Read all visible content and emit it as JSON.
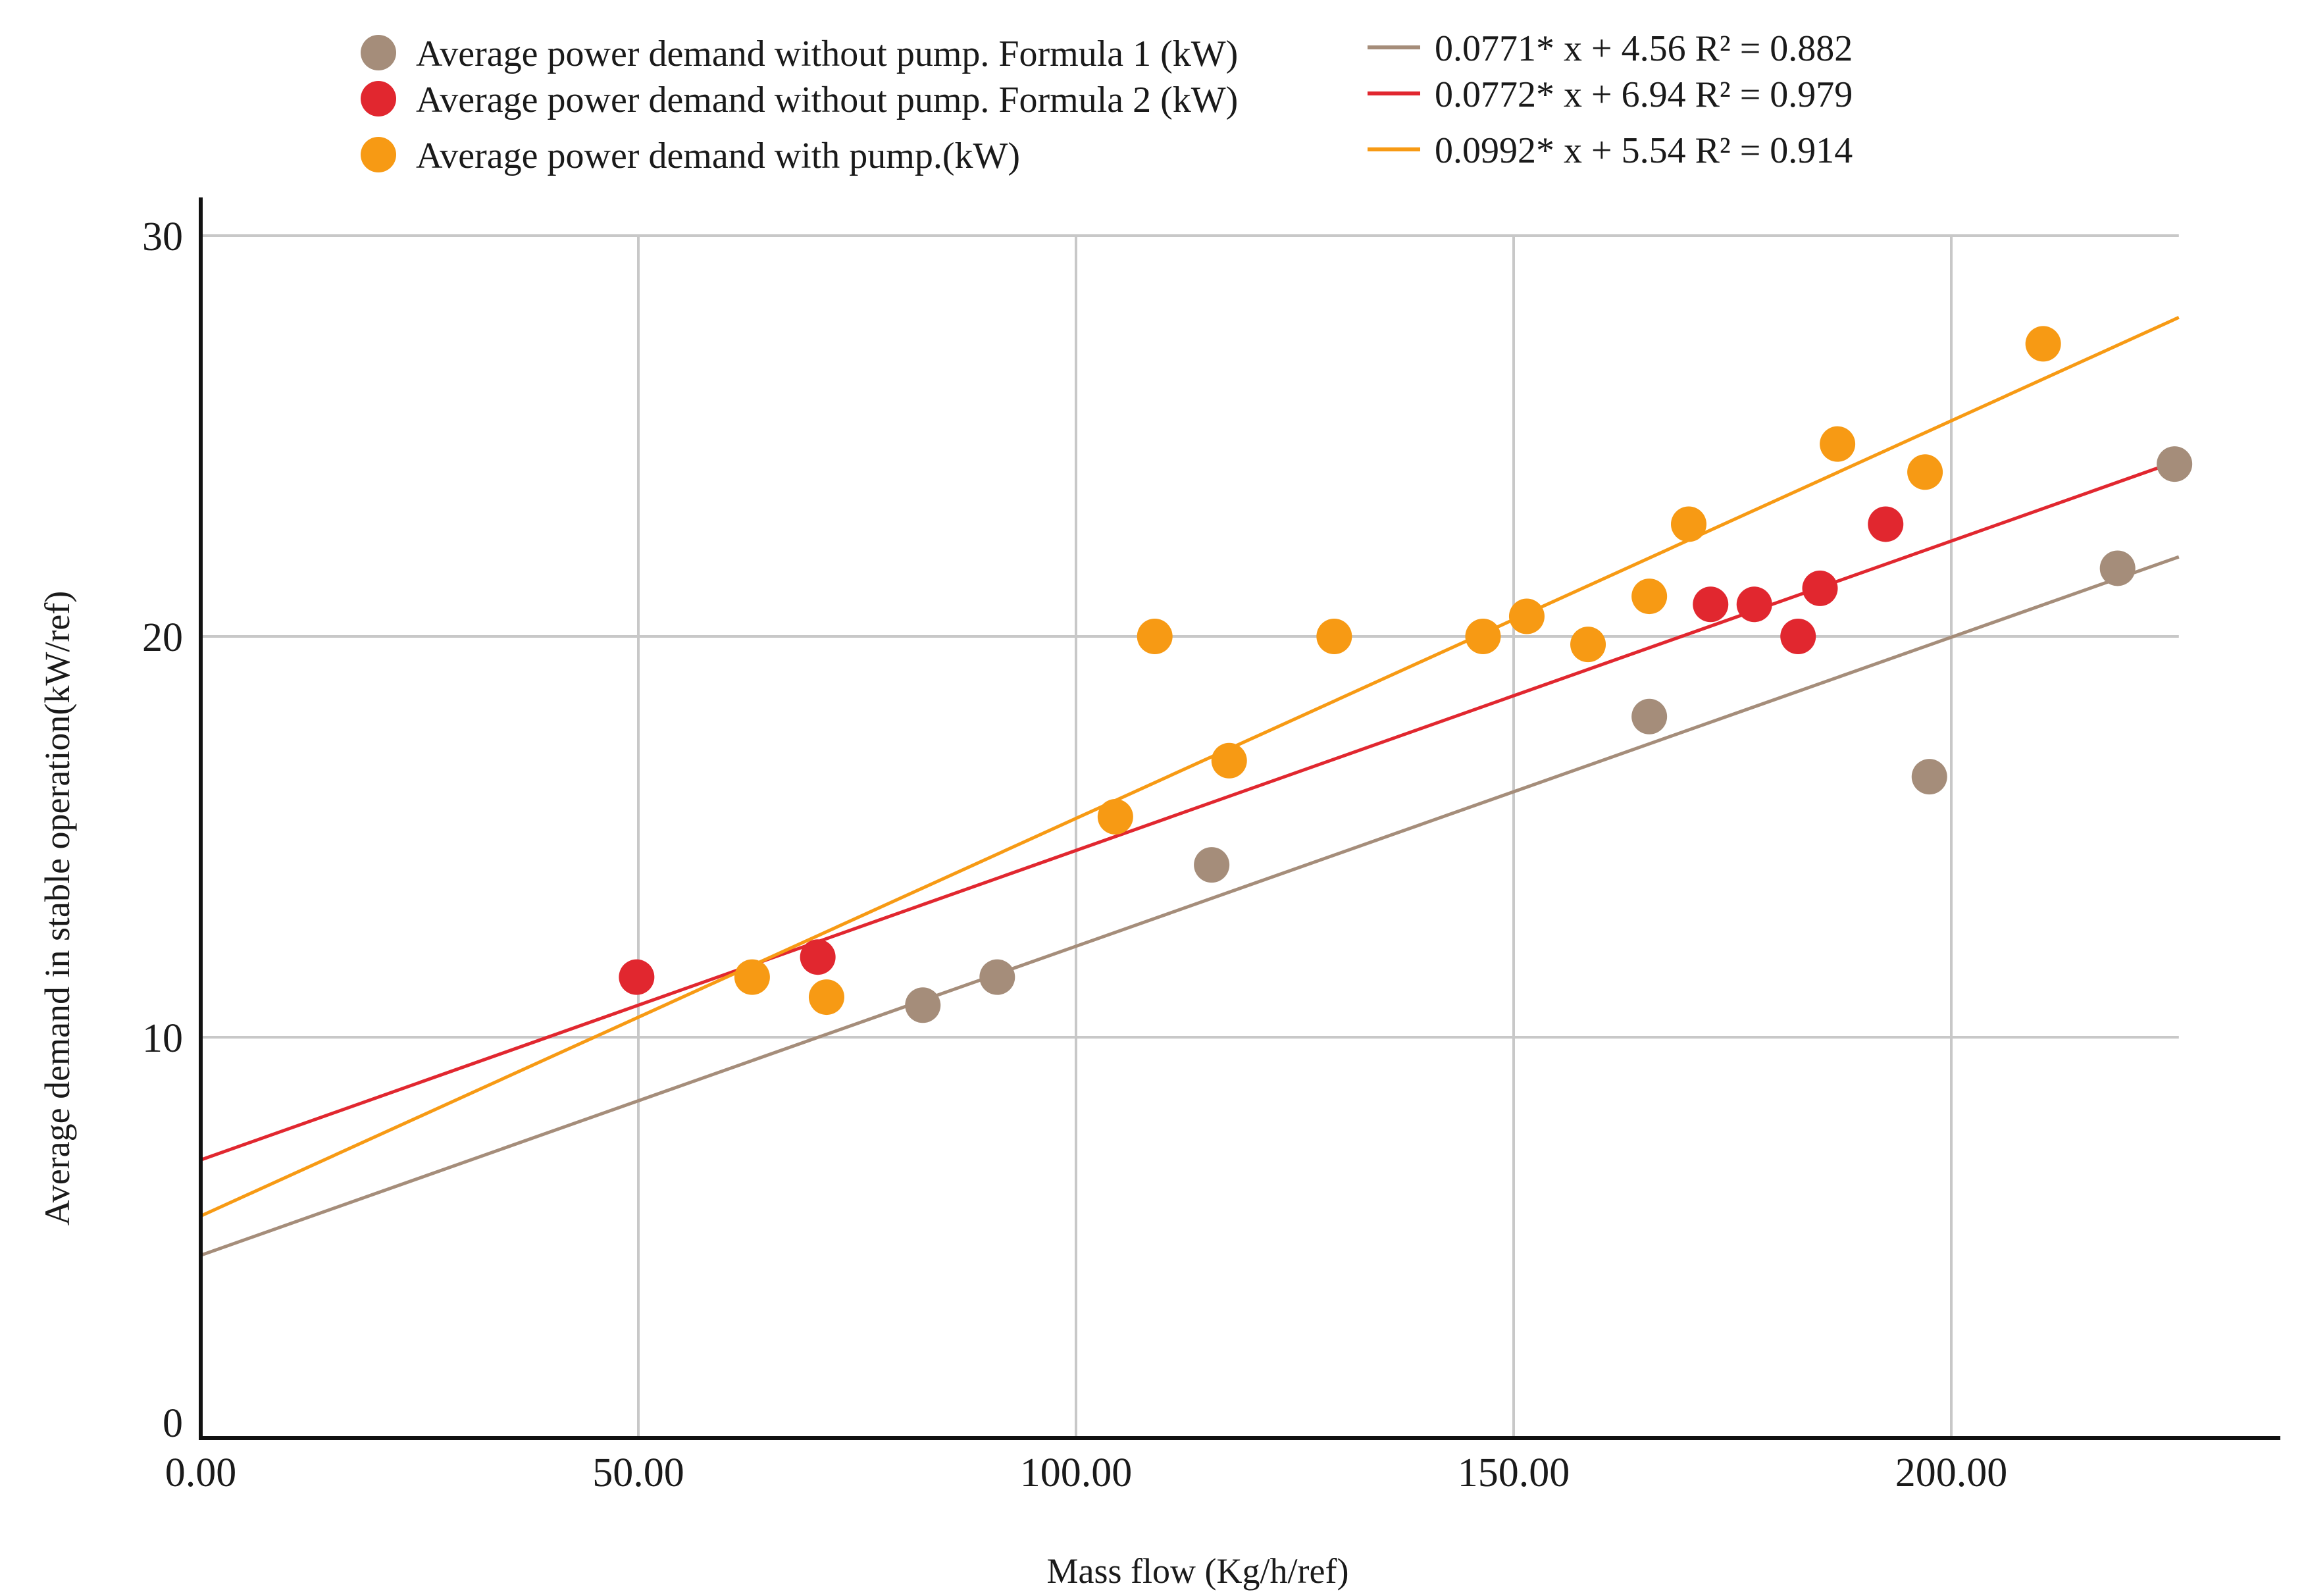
{
  "chart_data": {
    "type": "scatter",
    "title": "",
    "xlabel": "Mass flow (Kg/h/ref)",
    "ylabel": "Average demand in stable operation(kW/ref)",
    "xlim": [
      0,
      240
    ],
    "ylim": [
      0,
      30
    ],
    "x_ticks": [
      "0.00",
      "50.00",
      "100.00",
      "150.00",
      "200.00"
    ],
    "y_ticks": [
      "0",
      "10",
      "20",
      "30"
    ],
    "grid": true,
    "legend_position": "top",
    "series": [
      {
        "name": "Average power demand without pump. Formula 1 (kW)",
        "color": "#a58d7a",
        "points": [
          [
            82.5,
            10.8
          ],
          [
            91,
            11.5
          ],
          [
            115.5,
            14.3
          ],
          [
            165.5,
            18
          ],
          [
            197.5,
            16.5
          ],
          [
            219,
            21.7
          ],
          [
            225.5,
            24.3
          ]
        ],
        "trendline": {
          "slope": 0.0771,
          "intercept": 4.56,
          "label": "0.0771* x + 4.56 R² = 0.882"
        }
      },
      {
        "name": "Average power demand without pump. Formula 2 (kW)",
        "color": "#e1272f",
        "points": [
          [
            49.8,
            11.5
          ],
          [
            70.5,
            12
          ],
          [
            172.5,
            20.8
          ],
          [
            177.5,
            20.8
          ],
          [
            182.5,
            20
          ],
          [
            185,
            21.2
          ],
          [
            192.5,
            22.8
          ]
        ],
        "trendline": {
          "slope": 0.0772,
          "intercept": 6.94,
          "label": "0.0772* x + 6.94 R² = 0.979"
        }
      },
      {
        "name": "Average power demand with pump.(kW)",
        "color": "#f79a14",
        "points": [
          [
            63,
            11.5
          ],
          [
            71.5,
            11
          ],
          [
            104.5,
            15.5
          ],
          [
            109,
            20
          ],
          [
            117.5,
            16.9
          ],
          [
            129.5,
            20
          ],
          [
            146.5,
            20
          ],
          [
            151.5,
            20.5
          ],
          [
            158.5,
            19.8
          ],
          [
            165.5,
            21
          ],
          [
            170,
            22.8
          ],
          [
            187,
            24.8
          ],
          [
            197,
            24.1
          ],
          [
            210.5,
            27.3
          ]
        ],
        "trendline": {
          "slope": 0.0992,
          "intercept": 5.54,
          "label": "0.0992* x + 5.54 R² = 0.914"
        }
      }
    ]
  }
}
